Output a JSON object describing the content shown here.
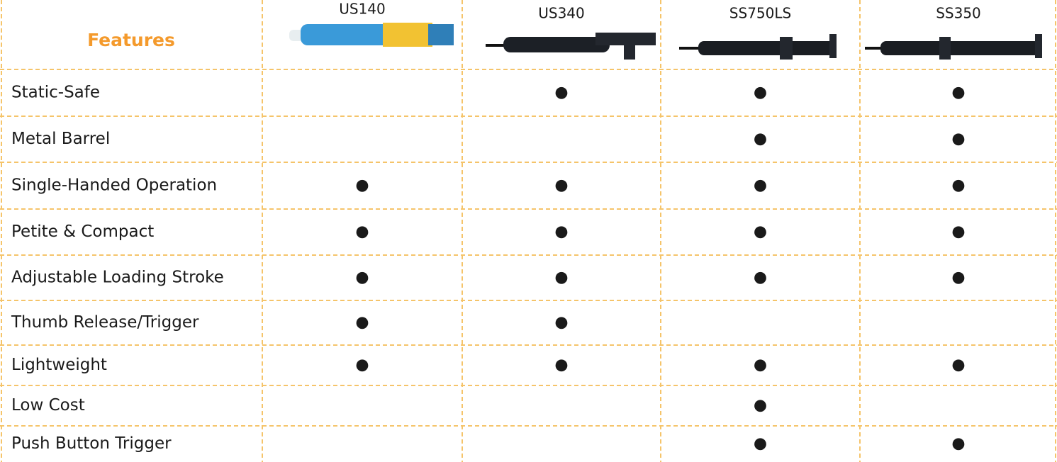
{
  "table": {
    "header": [
      "Features",
      "US140",
      "US340",
      "SS750LS",
      "SS350"
    ],
    "rows": [
      [
        "Static-Safe",
        null,
        "●",
        "●",
        "●"
      ],
      [
        "Metal Barrel",
        null,
        null,
        "●",
        "●"
      ],
      [
        "Single-Handed Operation",
        "●",
        "●",
        "●",
        "●"
      ],
      [
        "Petite & Compact",
        "●",
        "●",
        "●",
        "●"
      ],
      [
        "Adjustable Loading Stroke",
        "●",
        "●",
        "●",
        "●"
      ],
      [
        "Thumb Release/Trigger",
        "●",
        "●",
        null,
        null
      ],
      [
        "Lightweight",
        "●",
        "●",
        "●",
        "●"
      ],
      [
        "Low Cost",
        null,
        null,
        "●",
        null
      ],
      [
        "Push Button Trigger",
        null,
        null,
        "●",
        "●"
      ]
    ]
  }
}
